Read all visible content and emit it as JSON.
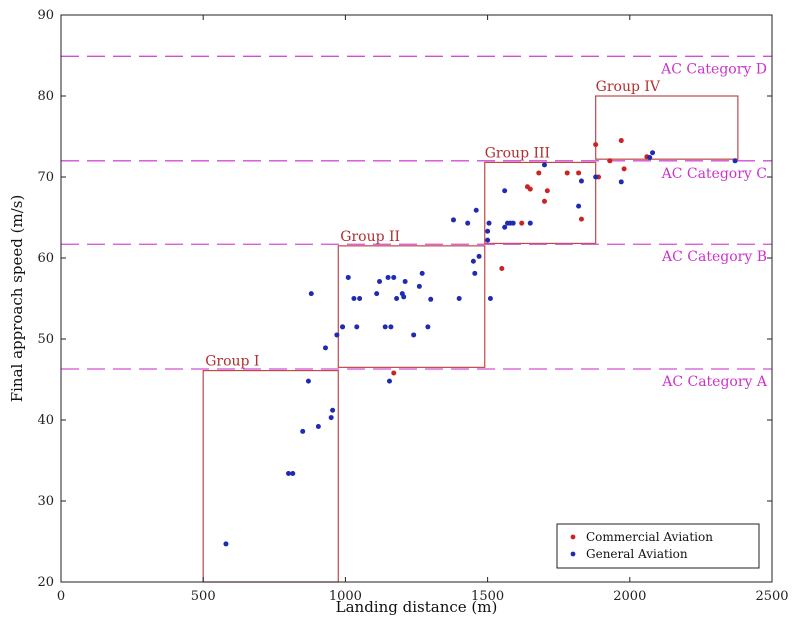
{
  "chart_data": {
    "type": "scatter",
    "xlabel": "Landing distance (m)",
    "ylabel": "Final approach speed (m/s)",
    "xlim": [
      0,
      2500
    ],
    "ylim": [
      20,
      90
    ],
    "xticks": [
      0,
      500,
      1000,
      1500,
      2000,
      2500
    ],
    "yticks": [
      20,
      30,
      40,
      50,
      60,
      70,
      80,
      90
    ],
    "grid": false,
    "legend_position": "bottom-right",
    "series": [
      {
        "name": "Commercial Aviation",
        "color": "#cc2222",
        "points": [
          [
            990,
            51.5
          ],
          [
            1170,
            45.8
          ],
          [
            1550,
            58.7
          ],
          [
            1620,
            64.3
          ],
          [
            1640,
            68.8
          ],
          [
            1650,
            68.5
          ],
          [
            1680,
            70.5
          ],
          [
            1700,
            67.0
          ],
          [
            1710,
            68.3
          ],
          [
            1780,
            70.5
          ],
          [
            1820,
            70.5
          ],
          [
            1830,
            64.8
          ],
          [
            1880,
            74.0
          ],
          [
            1890,
            70.0
          ],
          [
            1930,
            72.0
          ],
          [
            1970,
            74.5
          ],
          [
            1980,
            71.0
          ],
          [
            2060,
            72.5
          ]
        ]
      },
      {
        "name": "General Aviation",
        "color": "#1f2bb0",
        "points": [
          [
            580,
            24.7
          ],
          [
            800,
            33.4
          ],
          [
            815,
            33.4
          ],
          [
            850,
            38.6
          ],
          [
            870,
            44.8
          ],
          [
            880,
            55.6
          ],
          [
            905,
            39.2
          ],
          [
            930,
            48.9
          ],
          [
            950,
            40.3
          ],
          [
            955,
            41.2
          ],
          [
            970,
            50.5
          ],
          [
            990,
            51.5
          ],
          [
            1010,
            57.6
          ],
          [
            1030,
            55.0
          ],
          [
            1040,
            51.5
          ],
          [
            1050,
            55.0
          ],
          [
            1110,
            55.6
          ],
          [
            1120,
            57.1
          ],
          [
            1140,
            51.5
          ],
          [
            1150,
            57.6
          ],
          [
            1155,
            44.8
          ],
          [
            1160,
            51.5
          ],
          [
            1170,
            57.6
          ],
          [
            1180,
            55.0
          ],
          [
            1200,
            55.6
          ],
          [
            1205,
            55.2
          ],
          [
            1210,
            57.1
          ],
          [
            1240,
            50.5
          ],
          [
            1260,
            56.5
          ],
          [
            1270,
            58.1
          ],
          [
            1290,
            51.5
          ],
          [
            1300,
            54.9
          ],
          [
            1380,
            64.7
          ],
          [
            1400,
            55.0
          ],
          [
            1430,
            64.3
          ],
          [
            1450,
            59.6
          ],
          [
            1455,
            58.1
          ],
          [
            1460,
            65.9
          ],
          [
            1470,
            60.2
          ],
          [
            1500,
            63.3
          ],
          [
            1500,
            62.2
          ],
          [
            1505,
            64.3
          ],
          [
            1510,
            55.0
          ],
          [
            1560,
            68.3
          ],
          [
            1560,
            63.8
          ],
          [
            1570,
            64.3
          ],
          [
            1580,
            64.3
          ],
          [
            1590,
            64.3
          ],
          [
            1650,
            64.3
          ],
          [
            1700,
            71.5
          ],
          [
            1820,
            66.4
          ],
          [
            1830,
            69.5
          ],
          [
            1880,
            70.0
          ],
          [
            1970,
            69.4
          ],
          [
            2070,
            72.4
          ],
          [
            2080,
            73.0
          ],
          [
            2370,
            72.0
          ]
        ]
      }
    ],
    "category_lines": [
      {
        "label": "AC Category A",
        "y": 46.3
      },
      {
        "label": "AC Category B",
        "y": 61.7
      },
      {
        "label": "AC Category C",
        "y": 72.0
      },
      {
        "label": "AC Category D",
        "y": 84.9
      }
    ],
    "group_boxes": [
      {
        "label": "Group I",
        "x0": 500,
        "x1": 975,
        "y0": 20,
        "y1": 46.1
      },
      {
        "label": "Group II",
        "x0": 975,
        "x1": 1490,
        "y0": 46.5,
        "y1": 61.5
      },
      {
        "label": "Group III",
        "x0": 1490,
        "x1": 1880,
        "y0": 61.8,
        "y1": 71.8
      },
      {
        "label": "Group IV",
        "x0": 1880,
        "x1": 2380,
        "y0": 72.2,
        "y1": 80.0
      }
    ]
  }
}
